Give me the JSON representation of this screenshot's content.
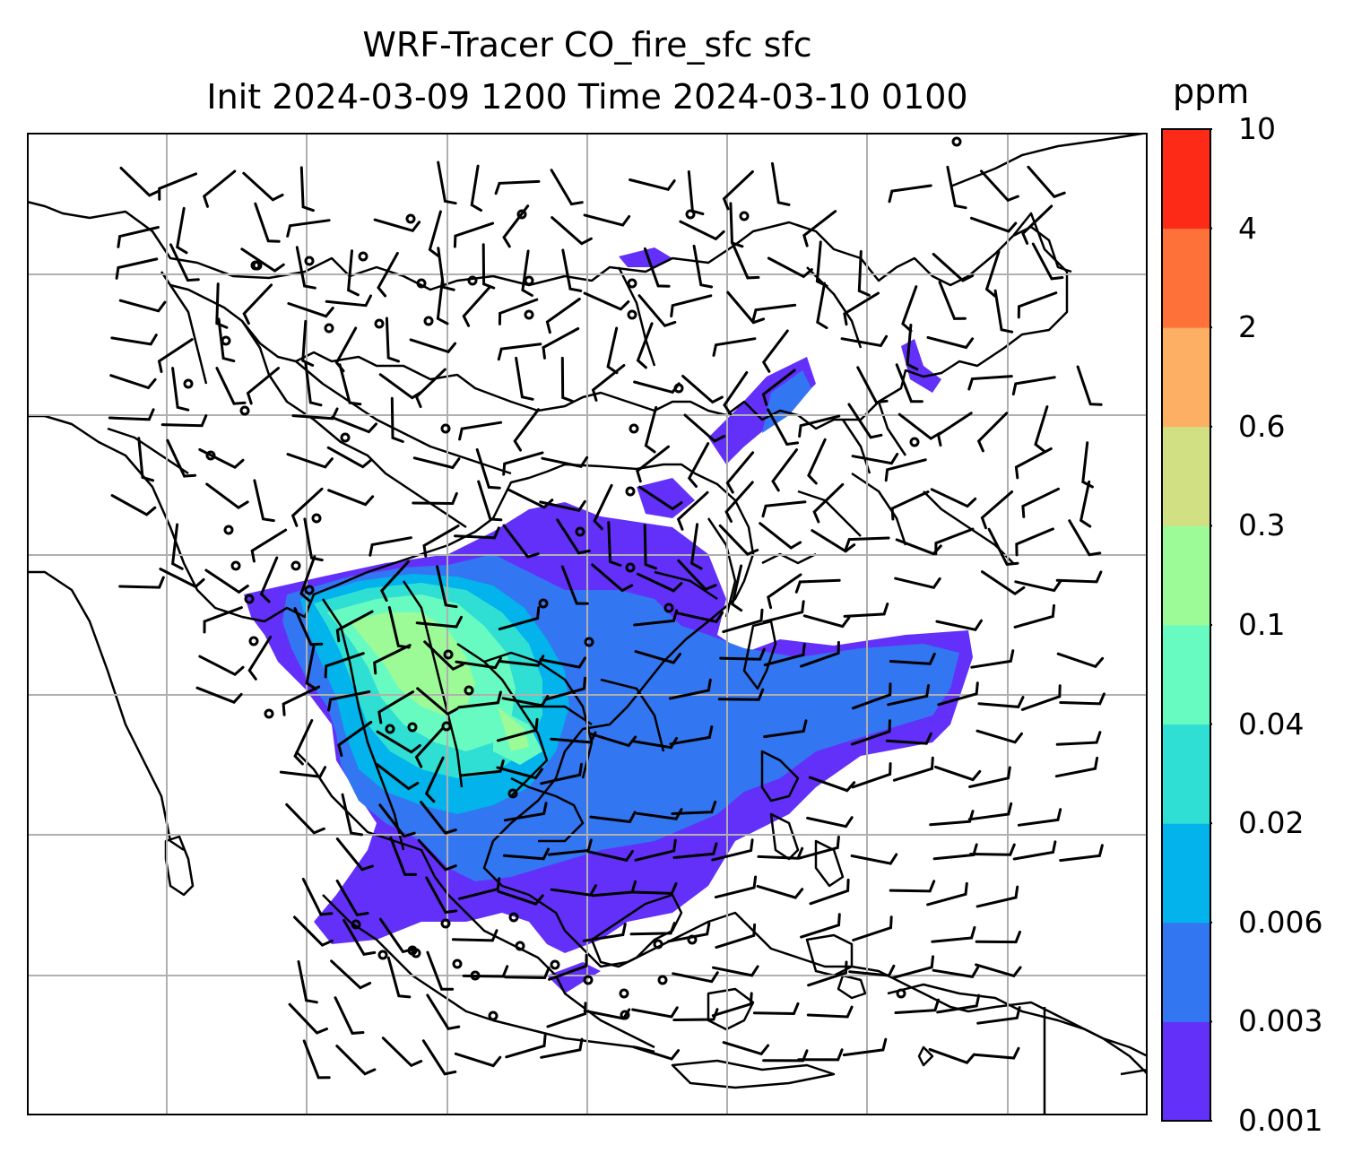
{
  "title": {
    "line1": "WRF-Tracer CO_fire_sfc sfc",
    "line2": "Init 2024-03-09 1200 Time 2024-03-10 0100"
  },
  "colorbar": {
    "unit": "ppm",
    "levels": [
      "0.001",
      "0.003",
      "0.006",
      "0.02",
      "0.04",
      "0.1",
      "0.3",
      "0.6",
      "2",
      "4",
      "10"
    ],
    "colors": [
      "#6330fa",
      "#3276f2",
      "#02b3ec",
      "#30dfd3",
      "#67fbc1",
      "#9cfa97",
      "#d0e083",
      "#fdb064",
      "#fe7239",
      "#fc2a16"
    ]
  },
  "map": {
    "grid": true,
    "features": [
      "coastlines",
      "country-borders",
      "wind-barbs",
      "CO-fire-plume"
    ]
  }
}
